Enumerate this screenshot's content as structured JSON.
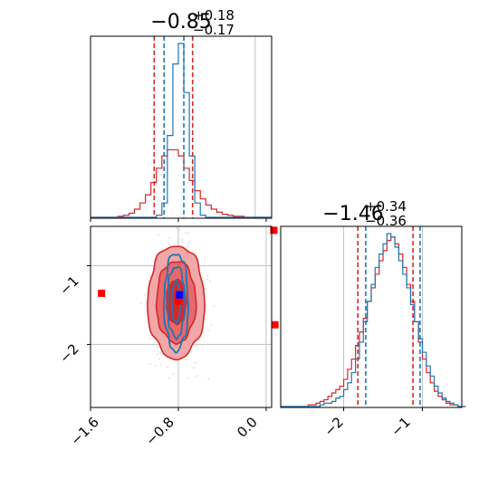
{
  "colors": {
    "red": "#d62728",
    "blue": "#1f77b4",
    "red_fill_outer": "#f2a7a8",
    "red_fill_mid": "#e8696b",
    "red_fill_inner": "#d62728",
    "marker_red": "#ff0000",
    "marker_blue": "#0000ff",
    "grid": "#c0c0c0",
    "axes": "#000000"
  },
  "chart_data": {
    "type": "corner",
    "parameters": 2,
    "panel_titles": [
      {
        "main": "−0.85",
        "sup": "+0.18",
        "sub": "−0.17"
      },
      {
        "main": "−1.46",
        "sup": "+0.34",
        "sub": "−0.36"
      }
    ],
    "x_ticks_p0": {
      "values": [
        -1.6,
        -0.8,
        0.0
      ],
      "labels": [
        "−1.6",
        "−0.8",
        "0.0"
      ]
    },
    "x_ticks_p1": {
      "values": [
        -2,
        -1
      ],
      "labels": [
        "−2",
        "−1"
      ]
    },
    "y_ticks_p1": {
      "values": [
        -1,
        -2
      ],
      "labels": [
        "−1",
        "−2"
      ]
    },
    "xlim_p0": [
      -1.6,
      0.05
    ],
    "xlim_p1": [
      -2.8,
      -0.5
    ],
    "ylim_p1": [
      -2.8,
      -0.5
    ],
    "truth_lines_p0": [
      -0.1
    ],
    "truth_lines_p1": [
      -1.0,
      -2.0
    ],
    "hist_p0": {
      "bin_edges_start": -1.6,
      "bin_width": 0.05,
      "red_counts": [
        0,
        0,
        0,
        0,
        0,
        1,
        2,
        4,
        8,
        14,
        22,
        34,
        48,
        60,
        66,
        66,
        60,
        48,
        36,
        26,
        18,
        12,
        8,
        5,
        3,
        2,
        1,
        1,
        0,
        0,
        0,
        0,
        0
      ],
      "blue_counts": [
        0,
        0,
        0,
        0,
        0,
        0,
        0,
        0,
        0,
        0,
        0,
        0,
        2,
        14,
        80,
        150,
        170,
        122,
        60,
        14,
        2,
        0,
        0,
        0,
        0,
        0,
        0,
        0,
        0,
        0,
        0,
        0,
        0
      ],
      "red_quantiles": [
        -1.02,
        -0.85,
        -0.67
      ],
      "blue_quantiles": [
        -0.93,
        -0.85,
        -0.75
      ]
    },
    "hist_p1": {
      "bin_edges_start": -2.8,
      "bin_width": 0.05,
      "red_counts": [
        0,
        0,
        0,
        0,
        0,
        0,
        0,
        1,
        1,
        2,
        3,
        4,
        6,
        8,
        10,
        12,
        16,
        22,
        28,
        36,
        44,
        52,
        62,
        70,
        78,
        86,
        92,
        98,
        100,
        96,
        90,
        82,
        72,
        62,
        50,
        38,
        28,
        20,
        14,
        9,
        6,
        4,
        2,
        1,
        1,
        0,
        0
      ],
      "blue_counts": [
        0,
        0,
        0,
        0,
        0,
        0,
        0,
        0,
        0,
        0,
        1,
        2,
        2,
        3,
        5,
        6,
        10,
        14,
        20,
        28,
        38,
        50,
        62,
        72,
        82,
        90,
        96,
        102,
        100,
        94,
        86,
        78,
        70,
        60,
        50,
        40,
        32,
        24,
        18,
        12,
        8,
        5,
        3,
        2,
        1,
        0,
        0
      ],
      "red_quantiles": [
        -1.82,
        -1.46,
        -1.12
      ],
      "blue_quantiles": [
        -1.72,
        -1.46,
        -1.03
      ]
    },
    "contours_2d": {
      "center": [
        -0.82,
        -1.46
      ],
      "red_levels_sigma": [
        [
          0.09,
          0.28
        ],
        [
          0.18,
          0.52
        ],
        [
          0.26,
          0.72
        ]
      ],
      "blue_levels_sigma": [
        [
          0.04,
          0.26
        ],
        [
          0.08,
          0.45
        ],
        [
          0.11,
          0.62
        ]
      ]
    },
    "markers_red": [
      [
        -1.5,
        -1.35
      ],
      [
        -0.8,
        -1.45
      ],
      [
        0.07,
        -0.55
      ],
      [
        0.08,
        -1.75
      ]
    ],
    "markers_blue": [
      [
        -0.79,
        -1.37
      ]
    ]
  }
}
